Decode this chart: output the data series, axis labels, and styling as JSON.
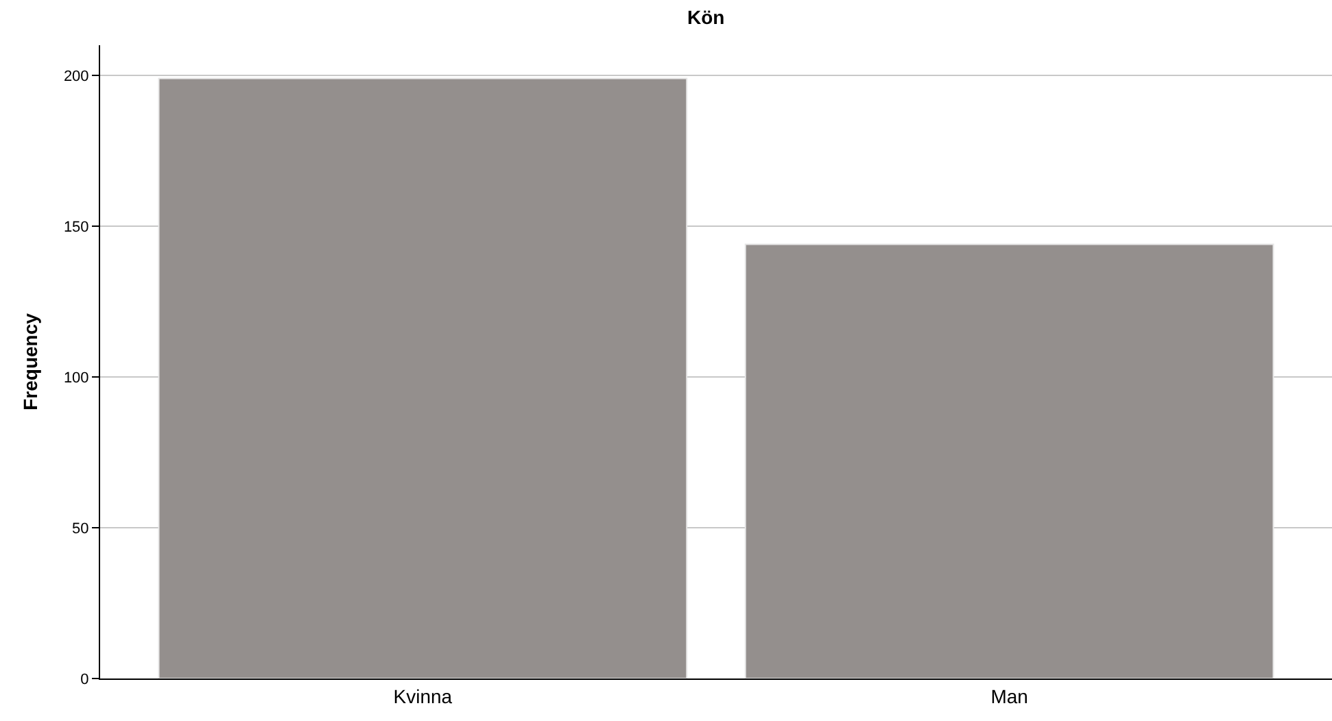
{
  "chart_data": {
    "type": "bar",
    "title": "Kön",
    "ylabel": "Frequency",
    "categories": [
      "Kvinna",
      "Man"
    ],
    "values": [
      199,
      144
    ],
    "color": "#948f8d",
    "ylim": [
      0,
      210
    ],
    "yticks": [
      0,
      50,
      100,
      150,
      200
    ],
    "grid": "y",
    "legend": false
  }
}
